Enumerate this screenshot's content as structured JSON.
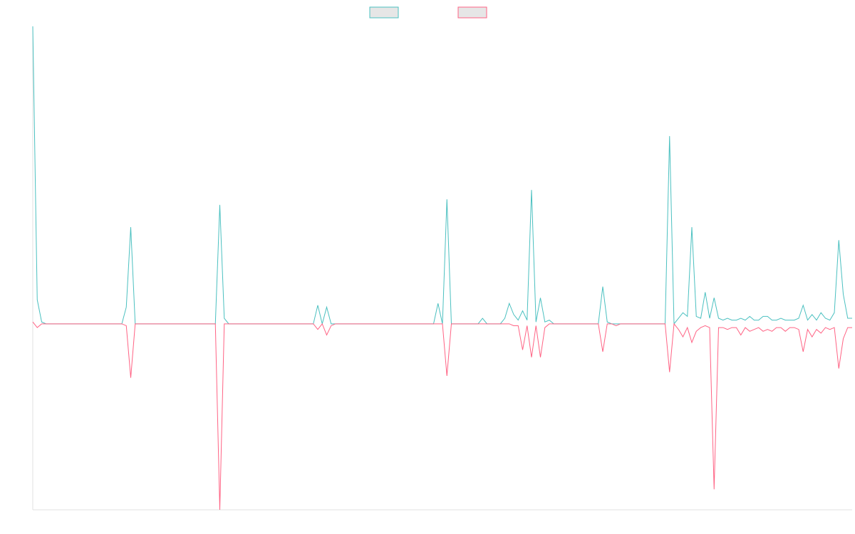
{
  "chart_data": {
    "type": "line",
    "ylim": [
      -100,
      160
    ],
    "series": [
      {
        "color": "#4bc0c0",
        "values": [
          160,
          13,
          1,
          0,
          0,
          0,
          0,
          0,
          0,
          0,
          0,
          0,
          0,
          0,
          0,
          0,
          0,
          0,
          0,
          0,
          0,
          9,
          52,
          0,
          0,
          0,
          0,
          0,
          0,
          0,
          0,
          0,
          0,
          0,
          0,
          0,
          0,
          0,
          0,
          0,
          0,
          0,
          64,
          3,
          0,
          0,
          0,
          0,
          0,
          0,
          0,
          0,
          0,
          0,
          0,
          0,
          0,
          0,
          0,
          0,
          0,
          0,
          0,
          0,
          10,
          0,
          9,
          0,
          0,
          0,
          0,
          0,
          0,
          0,
          0,
          0,
          0,
          0,
          0,
          0,
          0,
          0,
          0,
          0,
          0,
          0,
          0,
          0,
          0,
          0,
          0,
          11,
          0,
          67,
          0,
          0,
          0,
          0,
          0,
          0,
          0,
          3,
          0,
          0,
          0,
          0,
          3,
          11,
          5,
          2,
          7,
          2,
          72,
          1,
          14,
          1,
          2,
          0,
          0,
          0,
          0,
          0,
          0,
          0,
          0,
          0,
          0,
          0,
          20,
          1,
          0,
          0,
          0,
          0,
          0,
          0,
          0,
          0,
          0,
          0,
          0,
          0,
          0,
          101,
          0,
          3,
          6,
          4,
          52,
          4,
          3,
          17,
          3,
          14,
          3,
          2,
          3,
          2,
          2,
          3,
          2,
          4,
          2,
          2,
          4,
          4,
          2,
          2,
          3,
          2,
          2,
          2,
          3,
          10,
          2,
          5,
          2,
          6,
          3,
          2,
          6,
          45,
          16,
          3,
          3
        ]
      },
      {
        "color": "#ff6384",
        "values": [
          1,
          -2,
          0,
          0,
          0,
          0,
          0,
          0,
          0,
          0,
          0,
          0,
          0,
          0,
          0,
          0,
          0,
          0,
          0,
          0,
          0,
          -1,
          -29,
          0,
          0,
          0,
          0,
          0,
          0,
          0,
          0,
          0,
          0,
          0,
          0,
          0,
          0,
          0,
          0,
          0,
          0,
          0,
          -100,
          0,
          0,
          0,
          0,
          0,
          0,
          0,
          0,
          0,
          0,
          0,
          0,
          0,
          0,
          0,
          0,
          0,
          0,
          0,
          0,
          0,
          -3,
          0,
          -6,
          -1,
          0,
          0,
          0,
          0,
          0,
          0,
          0,
          0,
          0,
          0,
          0,
          0,
          0,
          0,
          0,
          0,
          0,
          0,
          0,
          0,
          0,
          0,
          0,
          0,
          0,
          -28,
          0,
          0,
          0,
          0,
          0,
          0,
          0,
          0,
          0,
          0,
          0,
          0,
          0,
          0,
          -1,
          -1,
          -14,
          -1,
          -18,
          -1,
          -18,
          -2,
          0,
          0,
          0,
          0,
          0,
          0,
          0,
          0,
          0,
          0,
          0,
          0,
          -15,
          0,
          0,
          -1,
          0,
          0,
          0,
          0,
          0,
          0,
          0,
          0,
          0,
          0,
          0,
          -26,
          0,
          -3,
          -7,
          -2,
          -10,
          -4,
          -2,
          -1,
          -2,
          -89,
          -2,
          -2,
          -3,
          -2,
          -2,
          -6,
          -2,
          -4,
          -3,
          -2,
          -4,
          -3,
          -4,
          -2,
          -2,
          -4,
          -2,
          -2,
          -3,
          -15,
          -3,
          -7,
          -3,
          -5,
          -2,
          -3,
          -2,
          -24,
          -8,
          -2,
          -2
        ]
      }
    ]
  }
}
